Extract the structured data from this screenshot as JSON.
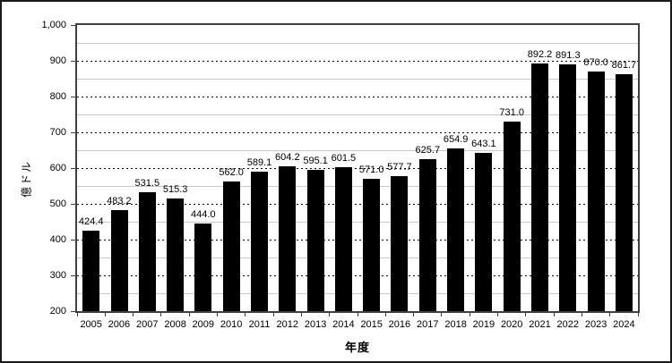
{
  "chart_data": {
    "type": "bar",
    "title": "",
    "xlabel": "年度",
    "ylabel": "億ドル",
    "categories": [
      "2005",
      "2006",
      "2007",
      "2008",
      "2009",
      "2010",
      "2011",
      "2012",
      "2013",
      "2014",
      "2015",
      "2016",
      "2017",
      "2018",
      "2019",
      "2020",
      "2021",
      "2022",
      "2023",
      "2024"
    ],
    "values": [
      424.4,
      483.2,
      531.5,
      515.3,
      444.0,
      562.0,
      589.1,
      604.2,
      595.1,
      601.5,
      571.0,
      577.7,
      625.7,
      654.9,
      643.1,
      731.0,
      892.2,
      891.3,
      870.0,
      861.7
    ],
    "value_labels": [
      "424.4",
      "483.2",
      "531.5",
      "515.3",
      "444.0",
      "562.0",
      "589.1",
      "604.2",
      "595.1",
      "601.5",
      "571.0",
      "577.7",
      "625.7",
      "654.9",
      "643.1",
      "731.0",
      "892.2",
      "891.3",
      "870.0",
      "861.7"
    ],
    "ylim": [
      200,
      1000
    ],
    "y_major_step": 100,
    "y_minor_step": 50,
    "y_ticks": [
      {
        "value": 200,
        "label": "200"
      },
      {
        "value": 300,
        "label": "300"
      },
      {
        "value": 400,
        "label": "400"
      },
      {
        "value": 500,
        "label": "500"
      },
      {
        "value": 600,
        "label": "600"
      },
      {
        "value": 700,
        "label": "700"
      },
      {
        "value": 800,
        "label": "800"
      },
      {
        "value": 900,
        "label": "900"
      },
      {
        "value": 1000,
        "label": "1,000"
      }
    ],
    "grid": {
      "major": "dashed",
      "minor": "solid"
    },
    "legend": "none",
    "colors": {
      "bar": "#000000",
      "major_grid": "#000000",
      "minor_grid": "#c8c8c8",
      "plot_border": "#404040",
      "frame_border": "#1a1a1a",
      "background": "#ffffff"
    }
  }
}
